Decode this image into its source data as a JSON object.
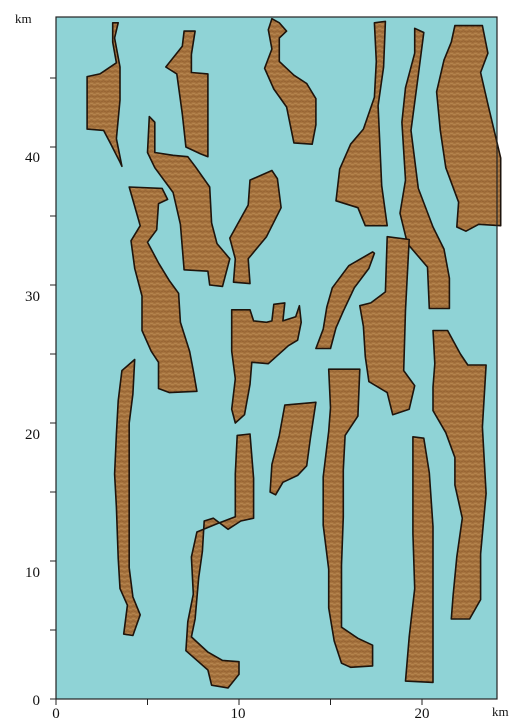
{
  "map": {
    "x_unit": "km",
    "y_unit": "km",
    "x_tick_labels": [
      "0",
      "10",
      "20"
    ],
    "y_tick_labels": [
      "0",
      "10",
      "20",
      "30",
      "40"
    ],
    "x_range_km": [
      0,
      25
    ],
    "y_range_km": [
      0,
      49
    ],
    "colors": {
      "water": "#8fd3d6",
      "sand": "#a7743f",
      "outline": "#1e140c",
      "frame": "#222222"
    },
    "fill_texture": "wavy-ripple-lines",
    "sand_bodies": [
      {
        "id": "body-1",
        "outline_km": [
          [
            3.1,
            49
          ],
          [
            3.1,
            47.6
          ],
          [
            3.3,
            46.1
          ],
          [
            2.4,
            45.3
          ],
          [
            1.7,
            45.1
          ],
          [
            1.7,
            41.3
          ],
          [
            2.6,
            41.2
          ],
          [
            3.0,
            40.2
          ],
          [
            3.5,
            38.9
          ],
          [
            3.6,
            38.6
          ],
          [
            3.3,
            40.6
          ],
          [
            3.5,
            43.4
          ],
          [
            3.5,
            45.8
          ],
          [
            3.2,
            47.9
          ],
          [
            3.4,
            49.0
          ]
        ]
      },
      {
        "id": "body-2",
        "outline_km": [
          [
            7.0,
            48.4
          ],
          [
            7.6,
            48.4
          ],
          [
            7.4,
            46.7
          ],
          [
            7.4,
            45.4
          ],
          [
            8.3,
            45.3
          ],
          [
            8.3,
            39.3
          ],
          [
            7.9,
            39.5
          ],
          [
            7.1,
            40.0
          ],
          [
            6.9,
            42.4
          ],
          [
            6.6,
            45.3
          ],
          [
            6.0,
            45.8
          ],
          [
            6.9,
            47.3
          ]
        ]
      },
      {
        "id": "body-3",
        "outline_km": [
          [
            11.8,
            49.3
          ],
          [
            12.2,
            49.0
          ],
          [
            12.6,
            48.4
          ],
          [
            12.2,
            47.9
          ],
          [
            12.2,
            46.2
          ],
          [
            13.0,
            45.2
          ],
          [
            13.7,
            44.6
          ],
          [
            14.2,
            43.5
          ],
          [
            14.2,
            41.6
          ],
          [
            14.0,
            40.2
          ],
          [
            13.0,
            40.3
          ],
          [
            12.6,
            42.9
          ],
          [
            11.9,
            44.2
          ],
          [
            11.4,
            45.7
          ],
          [
            11.8,
            47.1
          ],
          [
            11.6,
            48.5
          ]
        ]
      },
      {
        "id": "body-4",
        "outline_km": [
          [
            17.4,
            49.0
          ],
          [
            18.0,
            49.1
          ],
          [
            17.9,
            45.8
          ],
          [
            17.6,
            43.0
          ],
          [
            17.8,
            37.2
          ],
          [
            18.1,
            34.3
          ],
          [
            16.9,
            34.3
          ],
          [
            16.5,
            35.6
          ],
          [
            15.3,
            36.1
          ],
          [
            15.5,
            38.4
          ],
          [
            16.1,
            40.2
          ],
          [
            16.8,
            41.3
          ],
          [
            17.4,
            43.6
          ],
          [
            17.5,
            46.2
          ]
        ]
      },
      {
        "id": "body-5",
        "outline_km": [
          [
            19.6,
            48.6
          ],
          [
            20.1,
            48.3
          ],
          [
            19.8,
            45.2
          ],
          [
            19.4,
            41.2
          ],
          [
            19.8,
            37.0
          ],
          [
            20.6,
            34.2
          ],
          [
            21.2,
            32.6
          ],
          [
            21.5,
            30.5
          ],
          [
            21.5,
            28.3
          ],
          [
            20.4,
            28.3
          ],
          [
            20.3,
            31.3
          ],
          [
            19.2,
            33.0
          ],
          [
            18.8,
            35.2
          ],
          [
            19.1,
            37.6
          ],
          [
            18.9,
            41.8
          ],
          [
            19.1,
            44.3
          ],
          [
            19.6,
            46.8
          ]
        ]
      },
      {
        "id": "body-6",
        "outline_km": [
          [
            21.8,
            48.8
          ],
          [
            23.3,
            48.8
          ],
          [
            23.6,
            46.8
          ],
          [
            23.2,
            45.4
          ],
          [
            23.6,
            43.1
          ],
          [
            24.3,
            39.2
          ],
          [
            24.3,
            34.3
          ],
          [
            23.1,
            34.4
          ],
          [
            22.4,
            33.9
          ],
          [
            21.9,
            34.2
          ],
          [
            22.0,
            36.0
          ],
          [
            21.3,
            38.5
          ],
          [
            21.0,
            41.2
          ],
          [
            20.8,
            44.0
          ],
          [
            21.2,
            46.3
          ],
          [
            21.6,
            47.6
          ]
        ]
      },
      {
        "id": "body-7",
        "outline_km": [
          [
            5.1,
            42.2
          ],
          [
            5.4,
            41.8
          ],
          [
            5.4,
            39.6
          ],
          [
            6.4,
            39.4
          ],
          [
            7.2,
            39.3
          ],
          [
            7.6,
            38.6
          ],
          [
            8.4,
            37.1
          ],
          [
            8.5,
            34.5
          ],
          [
            8.8,
            33.0
          ],
          [
            9.5,
            31.9
          ],
          [
            9.1,
            29.9
          ],
          [
            8.4,
            30.0
          ],
          [
            8.3,
            31.0
          ],
          [
            7.0,
            31.1
          ],
          [
            6.8,
            34.4
          ],
          [
            6.4,
            36.7
          ],
          [
            5.4,
            38.5
          ],
          [
            5.0,
            39.6
          ]
        ]
      },
      {
        "id": "body-8",
        "outline_km": [
          [
            11.8,
            38.3
          ],
          [
            12.1,
            37.7
          ],
          [
            12.3,
            35.6
          ],
          [
            11.5,
            33.5
          ],
          [
            10.5,
            31.9
          ],
          [
            10.6,
            30.1
          ],
          [
            9.7,
            30.2
          ],
          [
            9.8,
            31.9
          ],
          [
            9.5,
            33.4
          ],
          [
            10.0,
            34.6
          ],
          [
            10.5,
            35.8
          ],
          [
            10.6,
            37.6
          ]
        ]
      },
      {
        "id": "body-9",
        "outline_km": [
          [
            4.0,
            37.1
          ],
          [
            5.8,
            37.0
          ],
          [
            6.1,
            36.2
          ],
          [
            5.6,
            35.9
          ],
          [
            5.5,
            34.0
          ],
          [
            5.0,
            33.1
          ],
          [
            5.6,
            31.6
          ],
          [
            6.2,
            30.3
          ],
          [
            6.7,
            29.4
          ],
          [
            6.8,
            27.3
          ],
          [
            7.3,
            25.2
          ],
          [
            7.5,
            23.8
          ],
          [
            7.7,
            22.3
          ],
          [
            6.2,
            22.2
          ],
          [
            5.6,
            22.5
          ],
          [
            5.6,
            24.4
          ],
          [
            5.2,
            25.2
          ],
          [
            4.7,
            26.7
          ],
          [
            4.7,
            29.2
          ],
          [
            4.3,
            31.2
          ],
          [
            4.1,
            33.2
          ],
          [
            4.6,
            34.3
          ]
        ]
      },
      {
        "id": "body-10",
        "outline_km": [
          [
            17.3,
            32.4
          ],
          [
            16.0,
            31.4
          ],
          [
            15.1,
            29.8
          ],
          [
            14.8,
            28.4
          ],
          [
            14.6,
            26.8
          ],
          [
            14.2,
            25.4
          ],
          [
            15.0,
            25.4
          ],
          [
            15.3,
            26.9
          ],
          [
            15.7,
            28.1
          ],
          [
            16.3,
            29.8
          ],
          [
            17.1,
            31.2
          ],
          [
            17.4,
            32.3
          ]
        ]
      },
      {
        "id": "body-11",
        "outline_km": [
          [
            18.1,
            33.5
          ],
          [
            19.3,
            33.3
          ],
          [
            19.1,
            28.2
          ],
          [
            19.0,
            23.8
          ],
          [
            19.6,
            22.7
          ],
          [
            19.3,
            21.0
          ],
          [
            18.4,
            20.6
          ],
          [
            18.1,
            22.2
          ],
          [
            17.1,
            23.0
          ],
          [
            16.9,
            24.8
          ],
          [
            16.8,
            27.0
          ],
          [
            16.6,
            28.5
          ],
          [
            17.2,
            28.7
          ],
          [
            18.0,
            29.5
          ]
        ]
      },
      {
        "id": "body-12",
        "outline_km": [
          [
            9.6,
            28.2
          ],
          [
            10.6,
            28.2
          ],
          [
            10.8,
            27.4
          ],
          [
            11.5,
            27.3
          ],
          [
            11.8,
            27.4
          ],
          [
            11.9,
            28.6
          ],
          [
            12.5,
            28.7
          ],
          [
            12.4,
            27.4
          ],
          [
            13.1,
            27.7
          ],
          [
            13.3,
            28.5
          ],
          [
            13.4,
            27.3
          ],
          [
            13.2,
            26.0
          ],
          [
            12.7,
            25.6
          ],
          [
            11.6,
            24.3
          ],
          [
            10.7,
            24.4
          ],
          [
            10.6,
            22.8
          ],
          [
            10.3,
            20.6
          ],
          [
            9.8,
            20.0
          ],
          [
            9.6,
            21.0
          ],
          [
            9.8,
            23.2
          ],
          [
            9.6,
            25.2
          ],
          [
            9.6,
            26.8
          ]
        ]
      },
      {
        "id": "body-13",
        "outline_km": [
          [
            4.3,
            24.6
          ],
          [
            4.2,
            22.1
          ],
          [
            4.0,
            20.0
          ],
          [
            4.0,
            17.2
          ],
          [
            4.0,
            12.2
          ],
          [
            4.0,
            9.5
          ],
          [
            4.2,
            7.4
          ],
          [
            4.6,
            6.1
          ],
          [
            4.2,
            4.6
          ],
          [
            3.7,
            4.7
          ],
          [
            3.9,
            6.8
          ],
          [
            3.5,
            8.0
          ],
          [
            3.4,
            10.2
          ],
          [
            3.3,
            13.9
          ],
          [
            3.2,
            16.3
          ],
          [
            3.3,
            19.2
          ],
          [
            3.4,
            21.6
          ],
          [
            3.6,
            23.8
          ]
        ]
      },
      {
        "id": "body-14",
        "outline_km": [
          [
            12.5,
            21.3
          ],
          [
            14.2,
            21.5
          ],
          [
            13.9,
            18.9
          ],
          [
            13.7,
            16.9
          ],
          [
            13.2,
            16.2
          ],
          [
            12.4,
            15.7
          ],
          [
            12.0,
            14.8
          ],
          [
            11.7,
            15.0
          ],
          [
            11.8,
            17.0
          ],
          [
            12.2,
            19.1
          ]
        ]
      },
      {
        "id": "body-15",
        "outline_km": [
          [
            14.9,
            23.9
          ],
          [
            16.6,
            23.9
          ],
          [
            16.5,
            20.5
          ],
          [
            15.8,
            19.1
          ],
          [
            15.7,
            16.6
          ],
          [
            15.7,
            13.2
          ],
          [
            15.6,
            9.7
          ],
          [
            15.6,
            5.2
          ],
          [
            16.5,
            4.4
          ],
          [
            17.3,
            3.9
          ],
          [
            17.3,
            2.4
          ],
          [
            16.1,
            2.3
          ],
          [
            15.6,
            2.6
          ],
          [
            15.2,
            4.2
          ],
          [
            14.9,
            6.6
          ],
          [
            14.9,
            9.4
          ],
          [
            14.6,
            12.6
          ],
          [
            14.6,
            16.1
          ],
          [
            14.9,
            19.4
          ],
          [
            15.0,
            21.1
          ]
        ]
      },
      {
        "id": "body-16",
        "outline_km": [
          [
            20.6,
            26.7
          ],
          [
            21.4,
            26.7
          ],
          [
            22.1,
            25.0
          ],
          [
            22.5,
            24.2
          ],
          [
            23.5,
            24.2
          ],
          [
            23.3,
            19.7
          ],
          [
            23.5,
            14.9
          ],
          [
            23.2,
            10.5
          ],
          [
            23.2,
            7.2
          ],
          [
            22.6,
            5.8
          ],
          [
            21.6,
            5.8
          ],
          [
            21.7,
            7.5
          ],
          [
            21.9,
            10.3
          ],
          [
            22.2,
            13.1
          ],
          [
            21.8,
            15.5
          ],
          [
            21.8,
            17.5
          ],
          [
            21.3,
            19.3
          ],
          [
            20.6,
            20.9
          ],
          [
            20.6,
            22.6
          ],
          [
            20.7,
            24.3
          ]
        ]
      },
      {
        "id": "body-17",
        "outline_km": [
          [
            9.9,
            19.1
          ],
          [
            10.6,
            19.2
          ],
          [
            10.8,
            16.0
          ],
          [
            10.8,
            13.1
          ],
          [
            10.1,
            12.9
          ],
          [
            9.4,
            12.3
          ],
          [
            8.6,
            13.1
          ],
          [
            8.1,
            12.9
          ],
          [
            8.0,
            10.7
          ],
          [
            7.8,
            8.8
          ],
          [
            7.6,
            5.8
          ],
          [
            7.4,
            4.5
          ],
          [
            8.3,
            3.4
          ],
          [
            9.1,
            2.8
          ],
          [
            10.0,
            2.7
          ],
          [
            10.0,
            1.8
          ],
          [
            9.4,
            0.8
          ],
          [
            8.5,
            1.0
          ],
          [
            8.3,
            2.1
          ],
          [
            7.1,
            3.5
          ],
          [
            7.2,
            5.6
          ],
          [
            7.5,
            7.6
          ],
          [
            7.4,
            10.3
          ],
          [
            7.7,
            12.1
          ],
          [
            8.8,
            12.7
          ],
          [
            9.8,
            13.2
          ],
          [
            9.8,
            16.3
          ]
        ]
      },
      {
        "id": "body-18",
        "outline_km": [
          [
            19.5,
            19.0
          ],
          [
            20.1,
            18.9
          ],
          [
            20.4,
            16.4
          ],
          [
            20.6,
            12.5
          ],
          [
            20.6,
            8.1
          ],
          [
            20.6,
            4.8
          ],
          [
            20.6,
            1.2
          ],
          [
            19.1,
            1.3
          ],
          [
            19.3,
            4.5
          ],
          [
            19.6,
            8.0
          ],
          [
            19.5,
            12.0
          ],
          [
            19.5,
            16.1
          ]
        ]
      }
    ]
  }
}
